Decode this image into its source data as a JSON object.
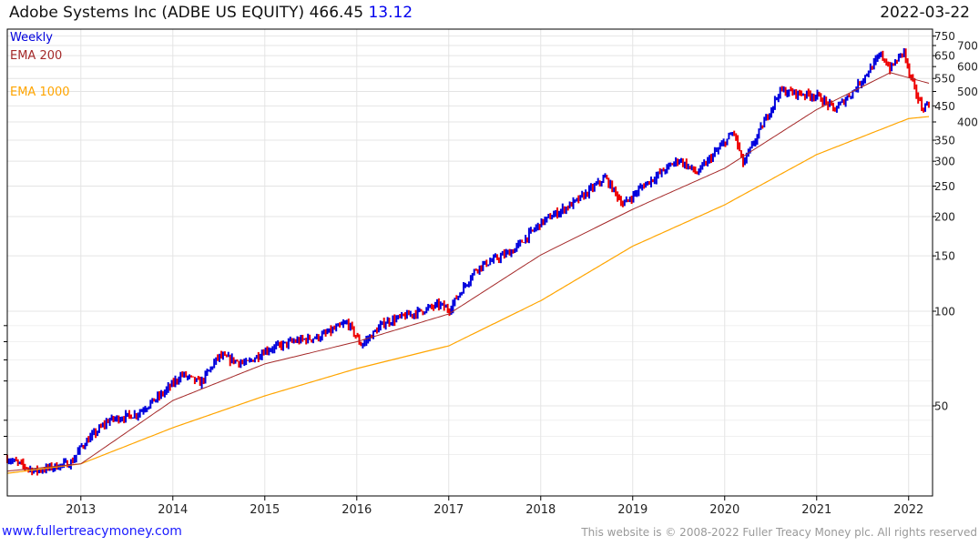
{
  "header": {
    "name": "Adobe Systems Inc (ADBE US EQUITY)",
    "price": "466.45",
    "change": "13.12",
    "date": "2022-03-22"
  },
  "footer": {
    "site": "www.fullertreacymoney.com",
    "copyright": "This website is © 2008-2022 Fuller Treacy Money plc. All rights reserved"
  },
  "colors": {
    "up": "#0000dd",
    "down": "#ee0000",
    "ema200": "#a52a2a",
    "ema1000": "#ffa500",
    "grid": "#e4e4e4"
  },
  "chart_data": {
    "type": "candlestick",
    "title": "Adobe Systems Inc (ADBE US EQUITY)",
    "scale": "log",
    "ylim": [
      27,
      800
    ],
    "xlim": [
      2012.2,
      2022.26
    ],
    "legend": [
      "Weekly",
      "EMA 200",
      "EMA 1000"
    ],
    "legend_position": "top-left",
    "x_ticks": [
      "2013",
      "2014",
      "2015",
      "2016",
      "2017",
      "2018",
      "2019",
      "2020",
      "2021",
      "2022"
    ],
    "y_ticks": [
      750,
      700,
      650,
      600,
      550,
      500,
      450,
      400,
      350,
      300,
      250,
      200,
      150,
      100,
      50
    ],
    "price_path": [
      [
        2012.2,
        34
      ],
      [
        2012.5,
        31
      ],
      [
        2012.9,
        33
      ],
      [
        2013.0,
        37
      ],
      [
        2013.3,
        45
      ],
      [
        2013.6,
        47
      ],
      [
        2013.9,
        55
      ],
      [
        2014.1,
        63
      ],
      [
        2014.3,
        59
      ],
      [
        2014.5,
        72
      ],
      [
        2014.8,
        68
      ],
      [
        2015.0,
        75
      ],
      [
        2015.3,
        80
      ],
      [
        2015.6,
        83
      ],
      [
        2015.9,
        92
      ],
      [
        2016.05,
        78
      ],
      [
        2016.3,
        92
      ],
      [
        2016.6,
        98
      ],
      [
        2016.9,
        105
      ],
      [
        2017.0,
        101
      ],
      [
        2017.3,
        137
      ],
      [
        2017.7,
        156
      ],
      [
        2018.0,
        191
      ],
      [
        2018.4,
        225
      ],
      [
        2018.7,
        266
      ],
      [
        2018.9,
        218
      ],
      [
        2019.1,
        249
      ],
      [
        2019.5,
        304
      ],
      [
        2019.7,
        275
      ],
      [
        2020.1,
        372
      ],
      [
        2020.2,
        294
      ],
      [
        2020.6,
        502
      ],
      [
        2021.0,
        485
      ],
      [
        2021.2,
        438
      ],
      [
        2021.4,
        502
      ],
      [
        2021.7,
        655
      ],
      [
        2021.8,
        590
      ],
      [
        2021.95,
        675
      ],
      [
        2022.0,
        573
      ],
      [
        2022.15,
        438
      ],
      [
        2022.22,
        466
      ]
    ],
    "ema200": [
      [
        2012.2,
        31
      ],
      [
        2013.0,
        32.7
      ],
      [
        2014.0,
        52
      ],
      [
        2015.0,
        68
      ],
      [
        2016.0,
        80
      ],
      [
        2017.0,
        98
      ],
      [
        2018.0,
        151
      ],
      [
        2019.0,
        211
      ],
      [
        2020.0,
        285
      ],
      [
        2021.0,
        438
      ],
      [
        2021.8,
        574
      ],
      [
        2022.22,
        531
      ]
    ],
    "ema1000": [
      [
        2012.2,
        30.5
      ],
      [
        2013.0,
        32.7
      ],
      [
        2014.0,
        42.6
      ],
      [
        2015.0,
        53.8
      ],
      [
        2016.0,
        65.7
      ],
      [
        2017.0,
        77.6
      ],
      [
        2018.0,
        108
      ],
      [
        2019.0,
        161
      ],
      [
        2020.0,
        218
      ],
      [
        2021.0,
        315
      ],
      [
        2022.0,
        410
      ],
      [
        2022.22,
        416
      ]
    ]
  }
}
